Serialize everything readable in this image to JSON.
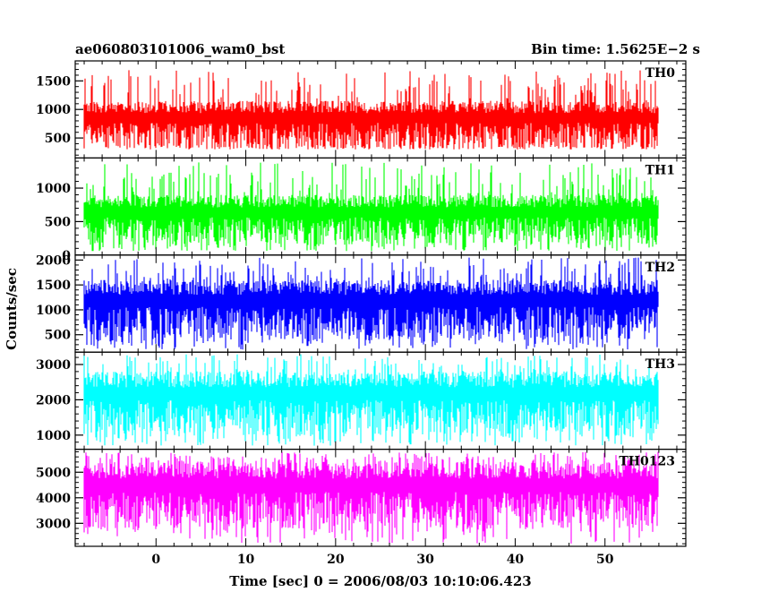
{
  "chart_data": {
    "type": "line",
    "title": "ae060803101006_wam0_bst",
    "subtitle": "Bin time: 1.5625E−2 s",
    "xlabel": "Time [sec] 0 = 2006/08/03 10:10:06.423",
    "ylabel": "Counts/sec",
    "xlim": [
      -9,
      59
    ],
    "x_ticks": [
      0,
      10,
      20,
      30,
      40,
      50
    ],
    "x_minor_step": 2,
    "x_data_range": [
      -8,
      56
    ],
    "grid": false,
    "panels": [
      {
        "name": "TH0",
        "color": "#ff0000",
        "ylim": [
          150,
          1850
        ],
        "ticks": [
          500,
          1000,
          1500
        ],
        "minor_step": 100,
        "typical_range": [
          300,
          1150
        ],
        "spike_max": 1700,
        "dip_min": 350
      },
      {
        "name": "TH1",
        "color": "#00ff00",
        "ylim": [
          0,
          1450
        ],
        "ticks": [
          0,
          500,
          1000
        ],
        "minor_step": 100,
        "typical_range": [
          150,
          900
        ],
        "spike_max": 1400,
        "dip_min": 60
      },
      {
        "name": "TH2",
        "color": "#0000ff",
        "ylim": [
          150,
          2100
        ],
        "ticks": [
          500,
          1000,
          1500,
          2000
        ],
        "minor_step": 100,
        "typical_range": [
          400,
          1600
        ],
        "spike_max": 2050,
        "dip_min": 200
      },
      {
        "name": "TH3",
        "color": "#00ffff",
        "ylim": [
          600,
          3350
        ],
        "ticks": [
          1000,
          2000,
          3000
        ],
        "minor_step": 200,
        "typical_range": [
          1000,
          2800
        ],
        "spike_max": 3300,
        "dip_min": 700
      },
      {
        "name": "TH0123",
        "color": "#ff00ff",
        "ylim": [
          2100,
          5900
        ],
        "ticks": [
          3000,
          4000,
          5000
        ],
        "minor_step": 200,
        "typical_range": [
          2800,
          5400
        ],
        "spike_max": 5800,
        "dip_min": 2200
      }
    ]
  }
}
